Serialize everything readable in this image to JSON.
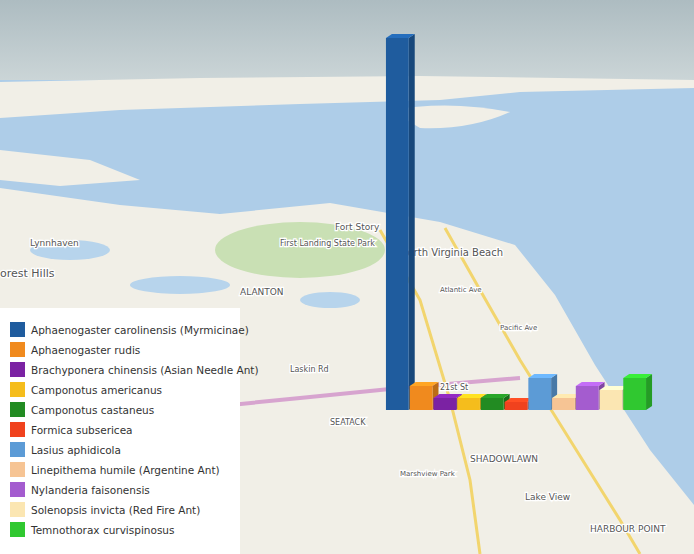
{
  "chart_data": {
    "type": "bar",
    "categories": [
      "Aphaenogaster carolinensis (Myrmicinae)",
      "Aphaenogaster rudis",
      "Brachyponera chinensis (Asian Needle Ant)",
      "Camponotus americanus",
      "Camponotus castaneus",
      "Formica subsericea",
      "Lasius aphidicola",
      "Linepithema humile (Argentine Ant)",
      "Nylanderia faisonensis",
      "Solenopsis invicta (Red Fire Ant)",
      "Temnothorax curvispinosus"
    ],
    "values": [
      93,
      6,
      3,
      3,
      3,
      2,
      8,
      3,
      6,
      5,
      8
    ],
    "colors": [
      "#1f5c9e",
      "#f08a1e",
      "#7b22a3",
      "#f5bd1c",
      "#228b22",
      "#f0421e",
      "#5c9bd6",
      "#f6c494",
      "#a45ccf",
      "#fbe6b2",
      "#30c830"
    ],
    "legend": "bottom-left",
    "tick_labels": false,
    "annotations": [
      "Fort Story",
      "First Landing State Park",
      "North Virginia Beach",
      "Lynnhaven",
      "ALANTON",
      "orest Hills",
      "Laskin Rd",
      "21st St",
      "SEATACK",
      "SHADOWLAWN",
      "Lake View",
      "Marshview Park",
      "HARBOUR POINT",
      "Atlantic Ave",
      "Pacific Ave"
    ]
  }
}
